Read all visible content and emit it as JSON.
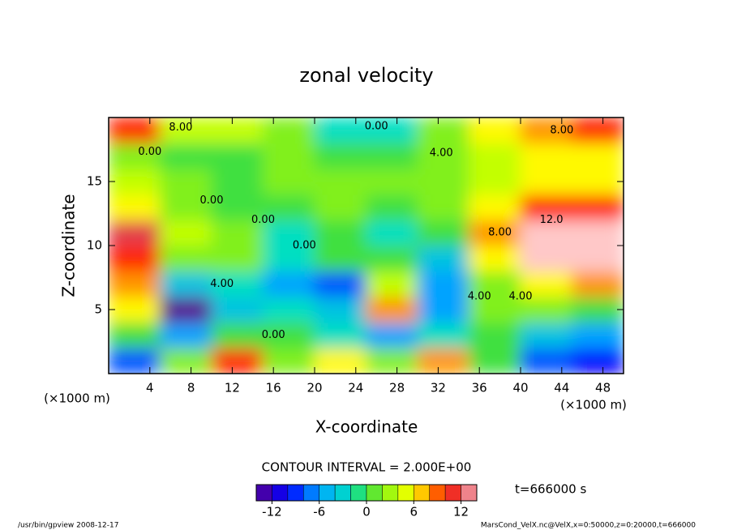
{
  "chart_data": {
    "type": "contour",
    "title": "zonal velocity",
    "xlabel": "X-coordinate",
    "ylabel": "Z-coordinate",
    "x_unit_label": "(×1000 m)",
    "y_unit_label": "(×1000 m)",
    "x": [
      2.5,
      7.5,
      12.5,
      17.5,
      22.5,
      27.5,
      32.5,
      37.5,
      42.5,
      47.5
    ],
    "z": [
      1,
      3,
      5,
      7,
      9,
      11,
      13,
      15,
      17,
      19
    ],
    "values": [
      [
        -8,
        2,
        10,
        2,
        6,
        2,
        8,
        0,
        -8,
        -10
      ],
      [
        0,
        -6,
        0,
        0,
        -2,
        -6,
        -2,
        0,
        -4,
        -6
      ],
      [
        6,
        -14,
        -4,
        -2,
        -4,
        8,
        -6,
        2,
        2,
        0
      ],
      [
        8,
        -4,
        -2,
        -6,
        -8,
        4,
        -6,
        2,
        6,
        8
      ],
      [
        10,
        2,
        2,
        -2,
        0,
        0,
        -4,
        6,
        14,
        14
      ],
      [
        12,
        4,
        2,
        -2,
        0,
        -2,
        0,
        8,
        14,
        14
      ],
      [
        6,
        2,
        0,
        0,
        2,
        0,
        2,
        6,
        10,
        10
      ],
      [
        4,
        2,
        0,
        2,
        2,
        2,
        2,
        4,
        6,
        6
      ],
      [
        2,
        0,
        0,
        2,
        0,
        0,
        2,
        4,
        6,
        6
      ],
      [
        10,
        4,
        4,
        2,
        -2,
        -2,
        2,
        6,
        8,
        10
      ]
    ],
    "xlim": [
      0,
      50
    ],
    "ylim": [
      0,
      20
    ],
    "xticks": [
      4,
      8,
      12,
      16,
      20,
      24,
      28,
      32,
      36,
      40,
      44,
      48
    ],
    "yticks": [
      5,
      10,
      15
    ],
    "contour_labels": [
      "8.00",
      "0.00",
      "8.00",
      "4.00",
      "0.00",
      "0.00",
      "0.00",
      "0.00",
      "4.00",
      "4.00",
      "0.00",
      "8.00",
      "12.0",
      "4.00"
    ],
    "contour_interval": 2,
    "contour_interval_label": "CONTOUR INTERVAL = 2.000E+00",
    "clim": [
      -14,
      14
    ],
    "colorbar_ticks": [
      -12,
      -6,
      0,
      6,
      12
    ],
    "time_label": "t=666000 s",
    "footer_left": "/usr/bin/gpview   2008-12-17",
    "footer_right": "MarsCond_VelX.nc@VelX,x=0:50000,z=0:20000,t=666000"
  }
}
